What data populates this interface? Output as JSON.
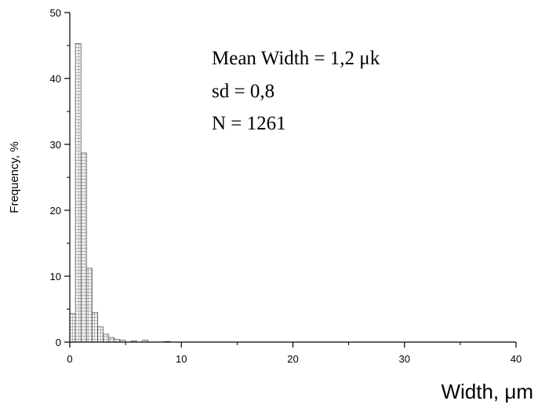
{
  "chart_data": {
    "type": "bar",
    "subtype": "histogram",
    "xlabel": "Width, μm",
    "ylabel": "Frequency, %",
    "xlim": [
      0,
      40
    ],
    "ylim": [
      0,
      50
    ],
    "x_ticks": [
      "0",
      "10",
      "20",
      "30",
      "40"
    ],
    "y_ticks": [
      "0",
      "10",
      "20",
      "30",
      "40",
      "50"
    ],
    "bin_width": 0.5,
    "bins": [
      {
        "x0": 0.0,
        "value": 4.3
      },
      {
        "x0": 0.5,
        "value": 45.3
      },
      {
        "x0": 1.0,
        "value": 28.7
      },
      {
        "x0": 1.5,
        "value": 11.2
      },
      {
        "x0": 2.0,
        "value": 4.5
      },
      {
        "x0": 2.5,
        "value": 2.3
      },
      {
        "x0": 3.0,
        "value": 1.2
      },
      {
        "x0": 3.5,
        "value": 0.7
      },
      {
        "x0": 4.0,
        "value": 0.4
      },
      {
        "x0": 4.5,
        "value": 0.3
      },
      {
        "x0": 5.5,
        "value": 0.2
      },
      {
        "x0": 6.5,
        "value": 0.3
      },
      {
        "x0": 8.5,
        "value": 0.1
      }
    ],
    "annotations": [
      "Mean Width = 1,2 μk",
      "sd = 0,8",
      "N = 1261"
    ],
    "bar_fill": "#f4f4f4",
    "bar_grid": "#555555",
    "grid": false,
    "legend": "none"
  }
}
